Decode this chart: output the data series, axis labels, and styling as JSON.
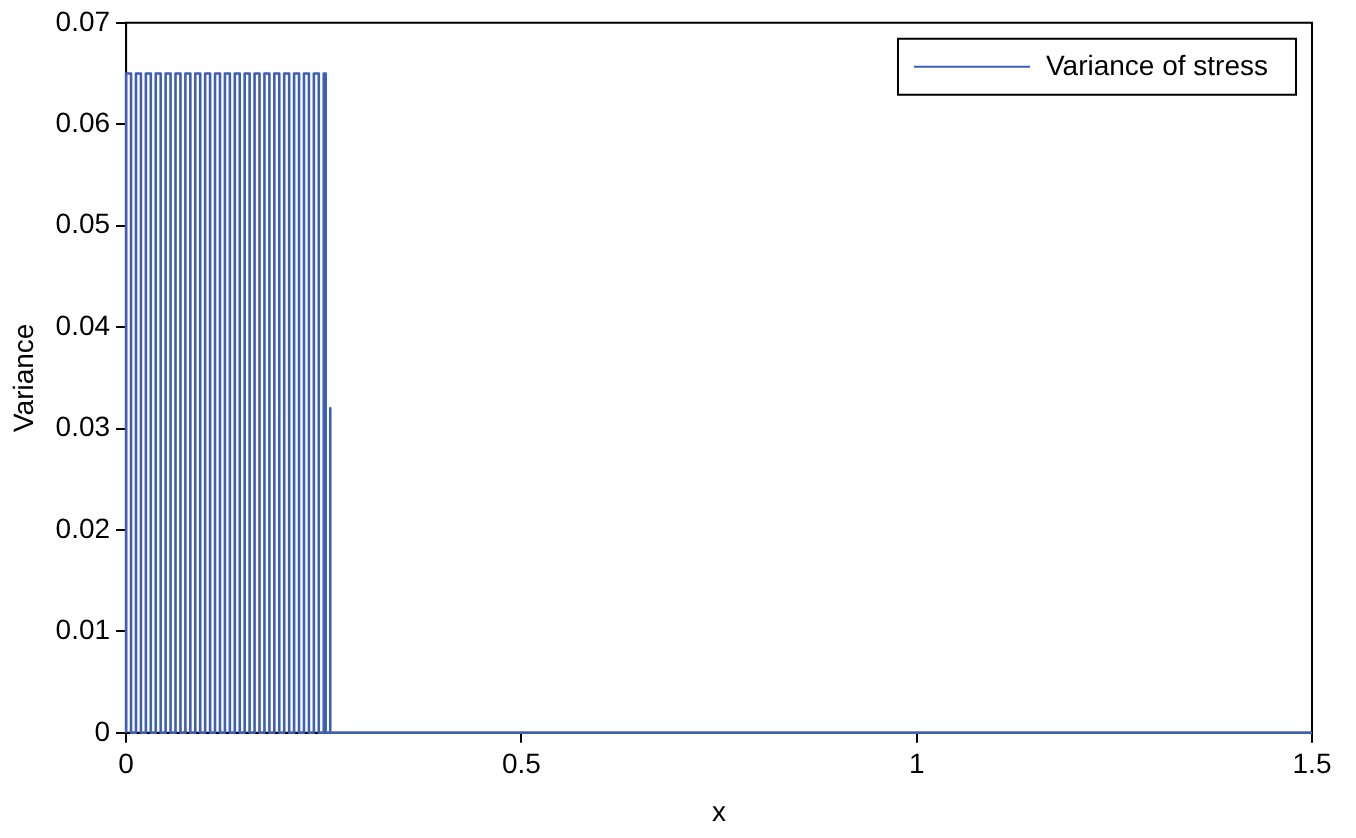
{
  "chart_data": {
    "type": "line",
    "xlabel": "x",
    "ylabel": "Variance",
    "xlim": [
      0,
      1.5
    ],
    "xticks": [
      0,
      0.5,
      1,
      1.5
    ],
    "ylim": [
      0,
      0.07
    ],
    "yticks": [
      0,
      0.01,
      0.02,
      0.03,
      0.04,
      0.05,
      0.06,
      0.07
    ],
    "grid": false,
    "legend": "top right",
    "marker": "none",
    "line_style": "solid",
    "series": [
      {
        "name": "Variance of stress",
        "color": "#3f5fb5",
        "x": [
          0,
          0,
          0.00625,
          0.00625,
          0.0125,
          0.0125,
          0.01875,
          0.01875,
          0.025,
          0.025,
          0.03125,
          0.03125,
          0.0375,
          0.0375,
          0.04375,
          0.04375,
          0.05,
          0.05,
          0.05625,
          0.05625,
          0.0625,
          0.0625,
          0.06875,
          0.06875,
          0.075,
          0.075,
          0.08125,
          0.08125,
          0.0875,
          0.0875,
          0.09375,
          0.09375,
          0.1,
          0.1,
          0.10625,
          0.10625,
          0.1125,
          0.1125,
          0.11875,
          0.11875,
          0.125,
          0.125,
          0.13125,
          0.13125,
          0.1375,
          0.1375,
          0.14375,
          0.14375,
          0.15,
          0.15,
          0.15625,
          0.15625,
          0.1625,
          0.1625,
          0.16875,
          0.16875,
          0.175,
          0.175,
          0.18125,
          0.18125,
          0.1875,
          0.1875,
          0.19375,
          0.19375,
          0.2,
          0.2,
          0.20625,
          0.20625,
          0.2125,
          0.2125,
          0.21875,
          0.21875,
          0.225,
          0.225,
          0.23125,
          0.23125,
          0.2375,
          0.2375,
          0.24375,
          0.24375,
          0.25,
          0.25,
          0.2525,
          0.2525,
          0.258,
          0.258,
          0.2585,
          1.5
        ],
        "values": [
          0,
          0.065,
          0.065,
          0,
          0,
          0.065,
          0.065,
          0,
          0,
          0.065,
          0.065,
          0,
          0,
          0.065,
          0.065,
          0,
          0,
          0.065,
          0.065,
          0,
          0,
          0.065,
          0.065,
          0,
          0,
          0.065,
          0.065,
          0,
          0,
          0.065,
          0.065,
          0,
          0,
          0.065,
          0.065,
          0,
          0,
          0.065,
          0.065,
          0,
          0,
          0.065,
          0.065,
          0,
          0,
          0.065,
          0.065,
          0,
          0,
          0.065,
          0.065,
          0,
          0,
          0.065,
          0.065,
          0,
          0,
          0.065,
          0.065,
          0,
          0,
          0.065,
          0.065,
          0,
          0,
          0.065,
          0.065,
          0,
          0,
          0.065,
          0.065,
          0,
          0,
          0.065,
          0.065,
          0,
          0,
          0.065,
          0.065,
          0,
          0,
          0.065,
          0.065,
          0,
          0,
          0.032,
          0,
          0
        ]
      }
    ]
  }
}
